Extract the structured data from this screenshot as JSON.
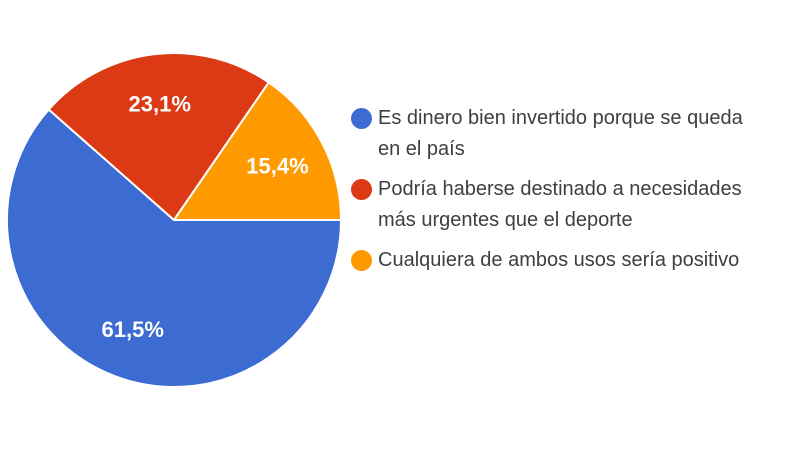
{
  "chart_data": {
    "type": "pie",
    "title": "",
    "categories": [
      "Es dinero bien invertido porque se queda en el país",
      "Podría haberse destinado a necesidades más urgentes que el deporte",
      "Cualquiera de ambos usos sería positivo"
    ],
    "values": [
      61.5,
      23.1,
      15.4
    ],
    "slice_labels": [
      "61,5%",
      "23,1%",
      "15,4%"
    ],
    "colors": [
      "#3C6BD2",
      "#DB3A14",
      "#FF9900"
    ],
    "start_angle_deg": 0,
    "direction": "clockwise",
    "legend_position": "right",
    "label_color": "#ffffff"
  },
  "legend": {
    "items": [
      {
        "label": "Es dinero bien invertido porque se queda en el país",
        "color": "#3C6BD2"
      },
      {
        "label": "Podría haberse destinado a necesidades más urgentes que el deporte",
        "color": "#DB3A14"
      },
      {
        "label": "Cualquiera de ambos usos sería positivo",
        "color": "#FF9900"
      }
    ]
  }
}
